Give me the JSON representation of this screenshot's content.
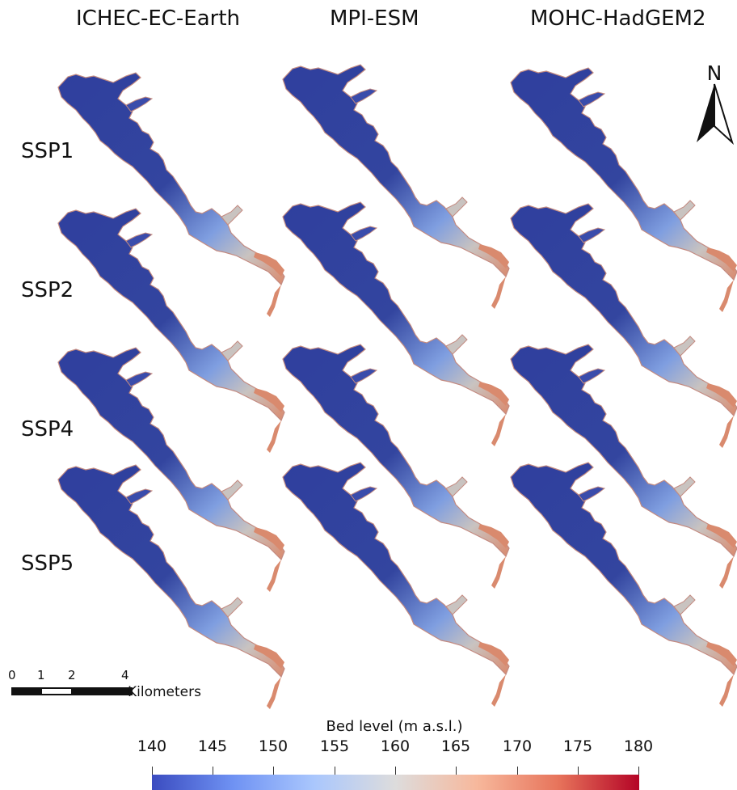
{
  "models": [
    "ICHEC-EC-Earth",
    "MPI-ESM",
    "MOHC-HadGEM2"
  ],
  "scenarios": [
    "SSP1",
    "SSP2",
    "SSP4",
    "SSP5"
  ],
  "north_arrow": {
    "label": "N",
    "icon": "north-arrow-icon"
  },
  "scale_bar": {
    "ticks": [
      "0",
      "1",
      "2",
      "4"
    ],
    "unit": "Kilometers"
  },
  "colorbar": {
    "title": "Bed level (m a.s.l.)",
    "ticks": [
      "140",
      "145",
      "150",
      "155",
      "160",
      "165",
      "170",
      "175",
      "180"
    ],
    "colors": [
      "#3b4cc0",
      "#6f92f3",
      "#aac7fd",
      "#dddcdc",
      "#f7b89c",
      "#e7745b",
      "#b40426"
    ]
  },
  "map_colors": {
    "deep": "#2f3f9e",
    "mid": "#7f9ee0",
    "shallow": "#c9c3c0",
    "high": "#d98a6e"
  }
}
